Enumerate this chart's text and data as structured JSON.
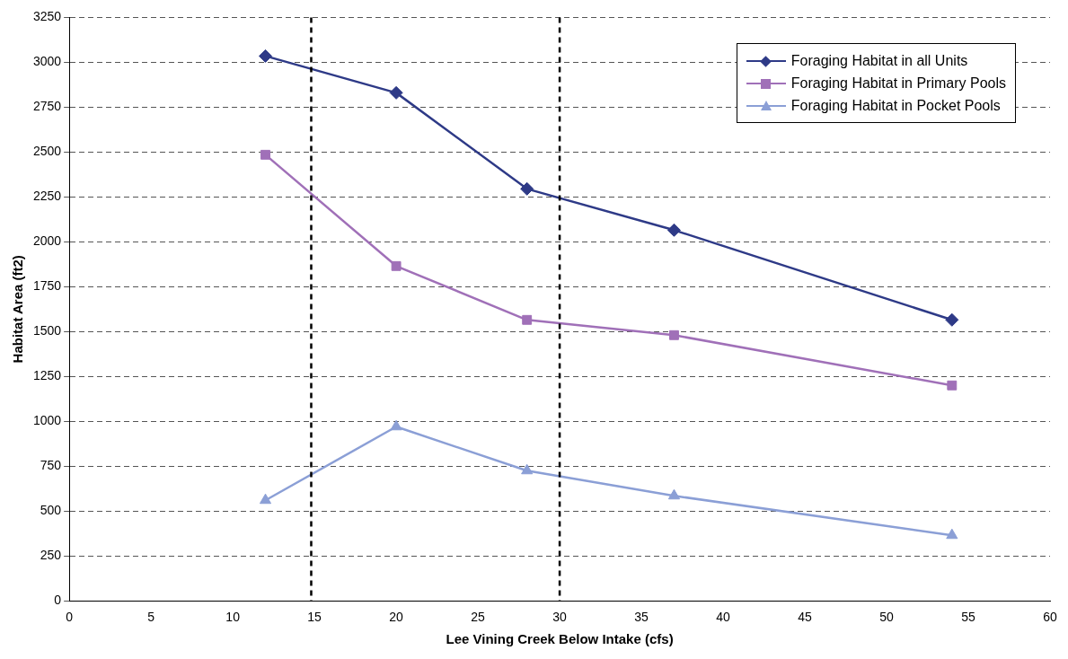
{
  "chart_data": {
    "type": "line",
    "xlabel": "Lee Vining Creek Below Intake (cfs)",
    "ylabel": "Habitat Area (ft2)",
    "xlim": [
      0,
      60
    ],
    "xticks": [
      0,
      5,
      10,
      15,
      20,
      25,
      30,
      35,
      40,
      45,
      50,
      55,
      60
    ],
    "ylim": [
      0,
      3250
    ],
    "yticks": [
      0,
      250,
      500,
      750,
      1000,
      1250,
      1500,
      1750,
      2000,
      2250,
      2500,
      2750,
      3000,
      3250
    ],
    "grid": "y",
    "legend": "top right",
    "series": [
      {
        "name": "Foraging Habitat in all Units",
        "color": "#2e3a87",
        "marker": "diamond",
        "x": [
          12,
          20,
          28,
          37,
          54
        ],
        "values": [
          3035,
          2830,
          2295,
          2065,
          1565
        ]
      },
      {
        "name": "Foraging Habitat in Primary Pools",
        "color": "#a070b8",
        "marker": "square",
        "x": [
          12,
          20,
          28,
          37,
          54
        ],
        "values": [
          2485,
          1865,
          1565,
          1480,
          1200
        ]
      },
      {
        "name": "Foraging Habitat in Pocket Pools",
        "color": "#8b9fd6",
        "marker": "triangle",
        "x": [
          12,
          20,
          28,
          37,
          54
        ],
        "values": [
          560,
          970,
          725,
          585,
          365
        ]
      }
    ],
    "ref_lines": [
      {
        "axis": "x",
        "value": 14.8,
        "color": "#000000",
        "line_style": "dashed"
      },
      {
        "axis": "x",
        "value": 30,
        "color": "#000000",
        "line_style": "dashed"
      }
    ]
  }
}
